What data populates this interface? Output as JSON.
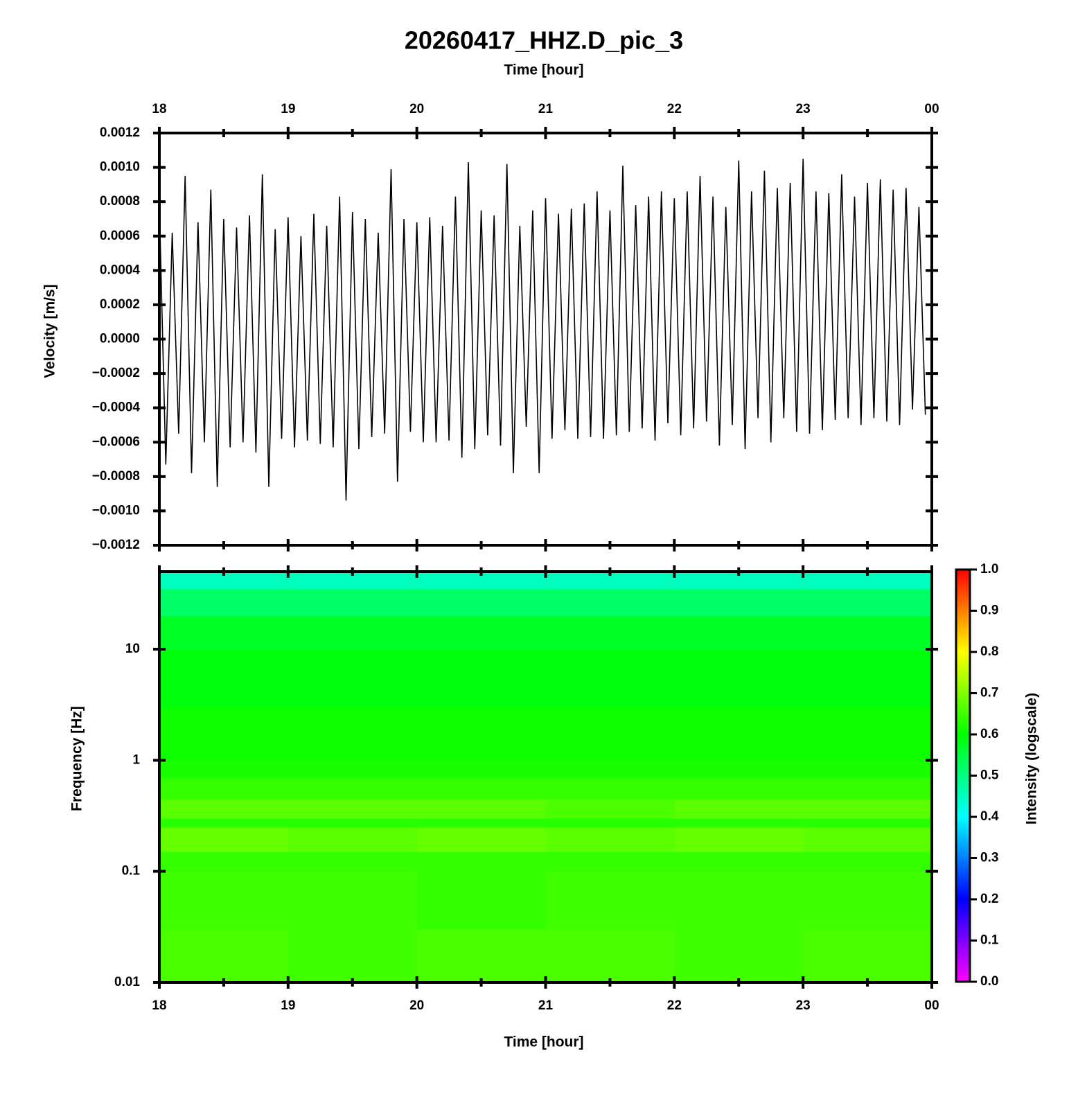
{
  "chart_data": [
    {
      "type": "line",
      "title": "20260417_HHZ.D_pic_3",
      "xlabel": "Time [hour]",
      "ylabel": "Velocity [m/s]",
      "color": "#000000",
      "x": [
        18,
        18.05,
        18.1,
        18.15,
        18.2,
        18.25,
        18.3,
        18.35,
        18.4,
        18.45,
        18.5,
        18.55,
        18.6,
        18.65,
        18.7,
        18.75,
        18.8,
        18.85,
        18.9,
        18.95,
        19,
        19.05,
        19.1,
        19.15,
        19.2,
        19.25,
        19.3,
        19.35,
        19.4,
        19.45,
        19.5,
        19.55,
        19.6,
        19.65,
        19.7,
        19.75,
        19.8,
        19.85,
        19.9,
        19.95,
        20,
        20.05,
        20.1,
        20.15,
        20.2,
        20.25,
        20.3,
        20.35,
        20.4,
        20.45,
        20.5,
        20.55,
        20.6,
        20.65,
        20.7,
        20.75,
        20.8,
        20.85,
        20.9,
        20.95,
        21,
        21.05,
        21.1,
        21.15,
        21.2,
        21.25,
        21.3,
        21.35,
        21.4,
        21.45,
        21.5,
        21.55,
        21.6,
        21.65,
        21.7,
        21.75,
        21.8,
        21.85,
        21.9,
        21.95,
        22,
        22.05,
        22.1,
        22.15,
        22.2,
        22.25,
        22.3,
        22.35,
        22.4,
        22.45,
        22.5,
        22.55,
        22.6,
        22.65,
        22.7,
        22.75,
        22.8,
        22.85,
        22.9,
        22.95,
        23,
        23.05,
        23.1,
        23.15,
        23.2,
        23.25,
        23.3,
        23.35,
        23.4,
        23.45,
        23.5,
        23.55,
        23.6,
        23.65,
        23.7,
        23.75,
        23.8,
        23.85,
        23.9,
        23.95
      ],
      "values": [
        0.00078,
        -0.00073,
        0.00062,
        -0.00055,
        0.00095,
        -0.00078,
        0.00068,
        -0.0006,
        0.00087,
        -0.00086,
        0.0007,
        -0.00063,
        0.00065,
        -0.0006,
        0.00072,
        -0.00066,
        0.00096,
        -0.00086,
        0.00064,
        -0.00058,
        0.00071,
        -0.00063,
        0.0006,
        -0.00059,
        0.00073,
        -0.00061,
        0.00066,
        -0.00063,
        0.00083,
        -0.00094,
        0.00074,
        -0.00064,
        0.0007,
        -0.00057,
        0.00062,
        -0.00055,
        0.00099,
        -0.00083,
        0.0007,
        -0.00054,
        0.00068,
        -0.0006,
        0.00071,
        -0.0006,
        0.00066,
        -0.00059,
        0.00083,
        -0.00069,
        0.00103,
        -0.00064,
        0.00075,
        -0.00056,
        0.00072,
        -0.00062,
        0.00102,
        -0.00078,
        0.00066,
        -0.00051,
        0.00075,
        -0.00078,
        0.00082,
        -0.00058,
        0.00073,
        -0.00053,
        0.00076,
        -0.00058,
        0.00079,
        -0.00057,
        0.00086,
        -0.00058,
        0.00075,
        -0.00056,
        0.00101,
        -0.00054,
        0.00078,
        -0.00052,
        0.00083,
        -0.00059,
        0.00086,
        -0.00049,
        0.00082,
        -0.00056,
        0.00086,
        -0.00052,
        0.00095,
        -0.00048,
        0.00083,
        -0.00062,
        0.00077,
        -0.0005,
        0.00104,
        -0.00064,
        0.00086,
        -0.00046,
        0.00098,
        -0.0006,
        0.00088,
        -0.00046,
        0.00091,
        -0.00054,
        0.00105,
        -0.00055,
        0.00086,
        -0.00053,
        0.00085,
        -0.00047,
        0.00096,
        -0.00046,
        0.00083,
        -0.0005,
        0.00091,
        -0.00046,
        0.00093,
        -0.00048,
        0.00087,
        -0.0005,
        0.00088,
        -0.00041,
        0.00077,
        -0.00044
      ],
      "xlim": [
        18,
        24
      ],
      "xticks": [
        18,
        19,
        20,
        21,
        22,
        23,
        {
          "value": 24,
          "label": "00"
        }
      ],
      "ylim": [
        -0.0012,
        0.0012
      ],
      "yticks": [
        {
          "value": -0.0012,
          "label": "−0.0012"
        },
        {
          "value": -0.001,
          "label": "−0.0010"
        },
        {
          "value": -0.0008,
          "label": "−0.0008"
        },
        {
          "value": -0.0006,
          "label": "−0.0006"
        },
        {
          "value": -0.0004,
          "label": "−0.0004"
        },
        {
          "value": -0.0002,
          "label": "−0.0002"
        },
        {
          "value": 0,
          "label": "0.0000"
        },
        {
          "value": 0.0002,
          "label": "0.0002"
        },
        {
          "value": 0.0004,
          "label": "0.0004"
        },
        {
          "value": 0.0006,
          "label": "0.0006"
        },
        {
          "value": 0.0008,
          "label": "0.0008"
        },
        {
          "value": 0.001,
          "label": "0.0010"
        },
        {
          "value": 0.0012,
          "label": "0.0012"
        }
      ]
    },
    {
      "type": "heatmap",
      "xlabel": "Time [hour]",
      "ylabel": "Frequency [Hz]",
      "colorbar_label": "Intensity (logscale)",
      "x_edges": [
        18,
        19,
        20,
        21,
        22,
        23,
        24
      ],
      "y_edges": [
        0.01,
        0.03,
        0.1,
        0.15,
        0.25,
        0.3,
        0.45,
        0.7,
        1,
        3,
        10,
        20,
        35,
        50
      ],
      "values": [
        [
          0.66,
          0.65,
          0.66,
          0.66,
          0.65,
          0.66
        ],
        [
          0.65,
          0.65,
          0.64,
          0.65,
          0.65,
          0.65
        ],
        [
          0.64,
          0.64,
          0.64,
          0.64,
          0.64,
          0.64
        ],
        [
          0.68,
          0.67,
          0.68,
          0.67,
          0.68,
          0.67
        ],
        [
          0.63,
          0.63,
          0.63,
          0.63,
          0.63,
          0.63
        ],
        [
          0.67,
          0.67,
          0.67,
          0.66,
          0.67,
          0.67
        ],
        [
          0.64,
          0.64,
          0.64,
          0.64,
          0.64,
          0.64
        ],
        [
          0.62,
          0.62,
          0.62,
          0.62,
          0.62,
          0.62
        ],
        [
          0.61,
          0.61,
          0.61,
          0.61,
          0.61,
          0.61
        ],
        [
          0.59,
          0.59,
          0.59,
          0.59,
          0.59,
          0.59
        ],
        [
          0.57,
          0.57,
          0.57,
          0.57,
          0.57,
          0.57
        ],
        [
          0.52,
          0.52,
          0.52,
          0.52,
          0.52,
          0.52
        ],
        [
          0.45,
          0.45,
          0.45,
          0.45,
          0.45,
          0.45
        ]
      ],
      "log_y": true,
      "xlim": [
        18,
        24
      ],
      "xticks": [
        18,
        19,
        20,
        21,
        22,
        23,
        {
          "value": 24,
          "label": "00"
        }
      ],
      "ylim": [
        0.01,
        50
      ],
      "yticks": [
        0.01,
        0.1,
        1,
        10
      ],
      "clim": [
        0,
        1
      ],
      "cticks": [
        {
          "value": 0,
          "label": "0.0"
        },
        0.1,
        0.2,
        0.3,
        0.4,
        0.5,
        0.6,
        0.7,
        0.8,
        0.9,
        {
          "value": 1,
          "label": "1.0"
        }
      ]
    }
  ]
}
